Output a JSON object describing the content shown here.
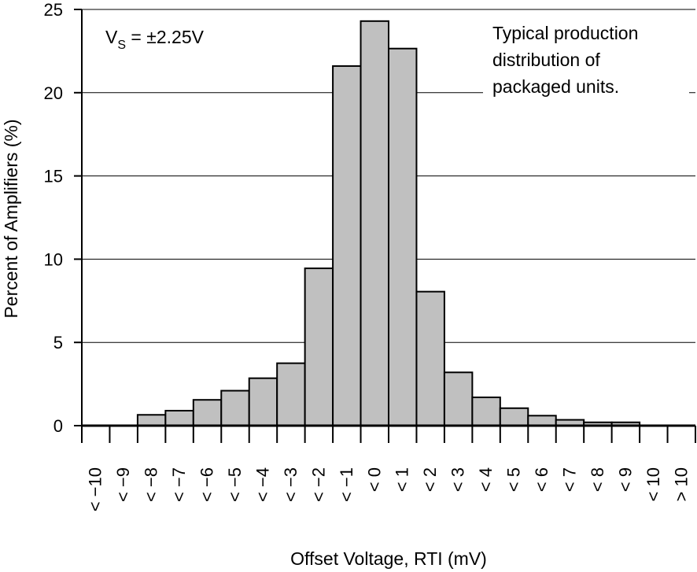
{
  "chart_data": {
    "type": "bar",
    "title": "",
    "xlabel": "Offset Voltage, RTI (mV)",
    "ylabel": "Percent of Amplifiers (%)",
    "ylim": [
      0,
      25
    ],
    "yticks": [
      0,
      5,
      10,
      15,
      20,
      25
    ],
    "grid": "horizontal",
    "bar_color": "#c0c0c0",
    "categories": [
      "< −10",
      "< −9",
      "< −8",
      "< −7",
      "< −6",
      "< −5",
      "< −4",
      "< −3",
      "< −2",
      "< −1",
      "< 0",
      "< 1",
      "< 2",
      "< 3",
      "< 4",
      "< 5",
      "< 6",
      "< 7",
      "< 8",
      "< 9",
      "< 10",
      "> 10"
    ],
    "values": [
      0,
      0,
      0.65,
      0.9,
      1.55,
      2.1,
      2.85,
      3.75,
      9.45,
      21.6,
      24.3,
      22.65,
      8.05,
      3.2,
      1.7,
      1.05,
      0.6,
      0.35,
      0.2,
      0.2,
      0,
      0
    ],
    "annotations": {
      "vs_label": "V",
      "vs_subscript": "S",
      "vs_value": " = ±2.25V",
      "note_lines": [
        "Typical production",
        "distribution of",
        "packaged units."
      ]
    }
  }
}
